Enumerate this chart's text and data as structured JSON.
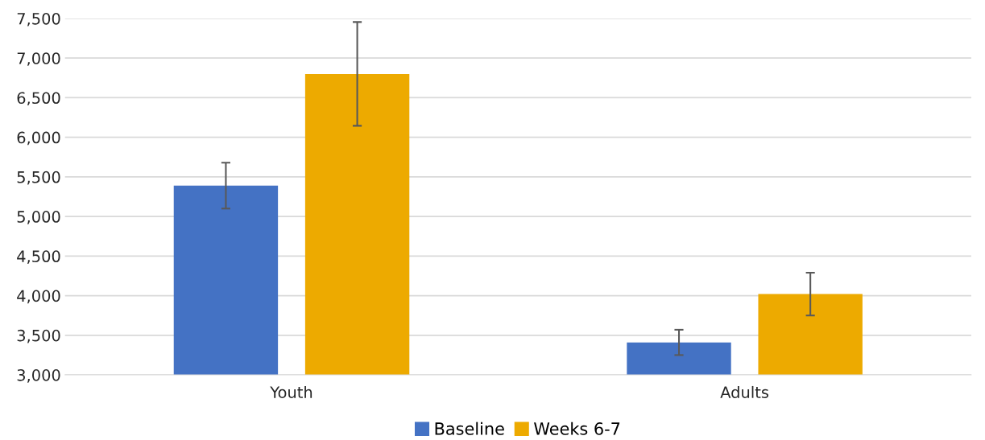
{
  "chart_data": {
    "type": "bar",
    "categories": [
      "Youth",
      "Adults"
    ],
    "series": [
      {
        "name": "Baseline",
        "color": "#4472c4",
        "values": [
          5390,
          3410
        ],
        "errors": [
          290,
          160
        ]
      },
      {
        "name": "Weeks 6-7",
        "color": "#edaa00",
        "values": [
          6800,
          4020
        ],
        "errors": [
          655,
          270
        ]
      }
    ],
    "ylim": [
      3000,
      7500
    ],
    "yticks": [
      {
        "value": 3000,
        "label": "3,000"
      },
      {
        "value": 3500,
        "label": "3,500"
      },
      {
        "value": 4000,
        "label": "4,000"
      },
      {
        "value": 4500,
        "label": "4,500"
      },
      {
        "value": 5000,
        "label": "5,000"
      },
      {
        "value": 5500,
        "label": "5,500"
      },
      {
        "value": 6000,
        "label": "6,000"
      },
      {
        "value": 6500,
        "label": "6,500"
      },
      {
        "value": 7000,
        "label": "7,000"
      },
      {
        "value": 7500,
        "label": "7,500"
      }
    ],
    "grid": "y",
    "legend": "bottom"
  }
}
